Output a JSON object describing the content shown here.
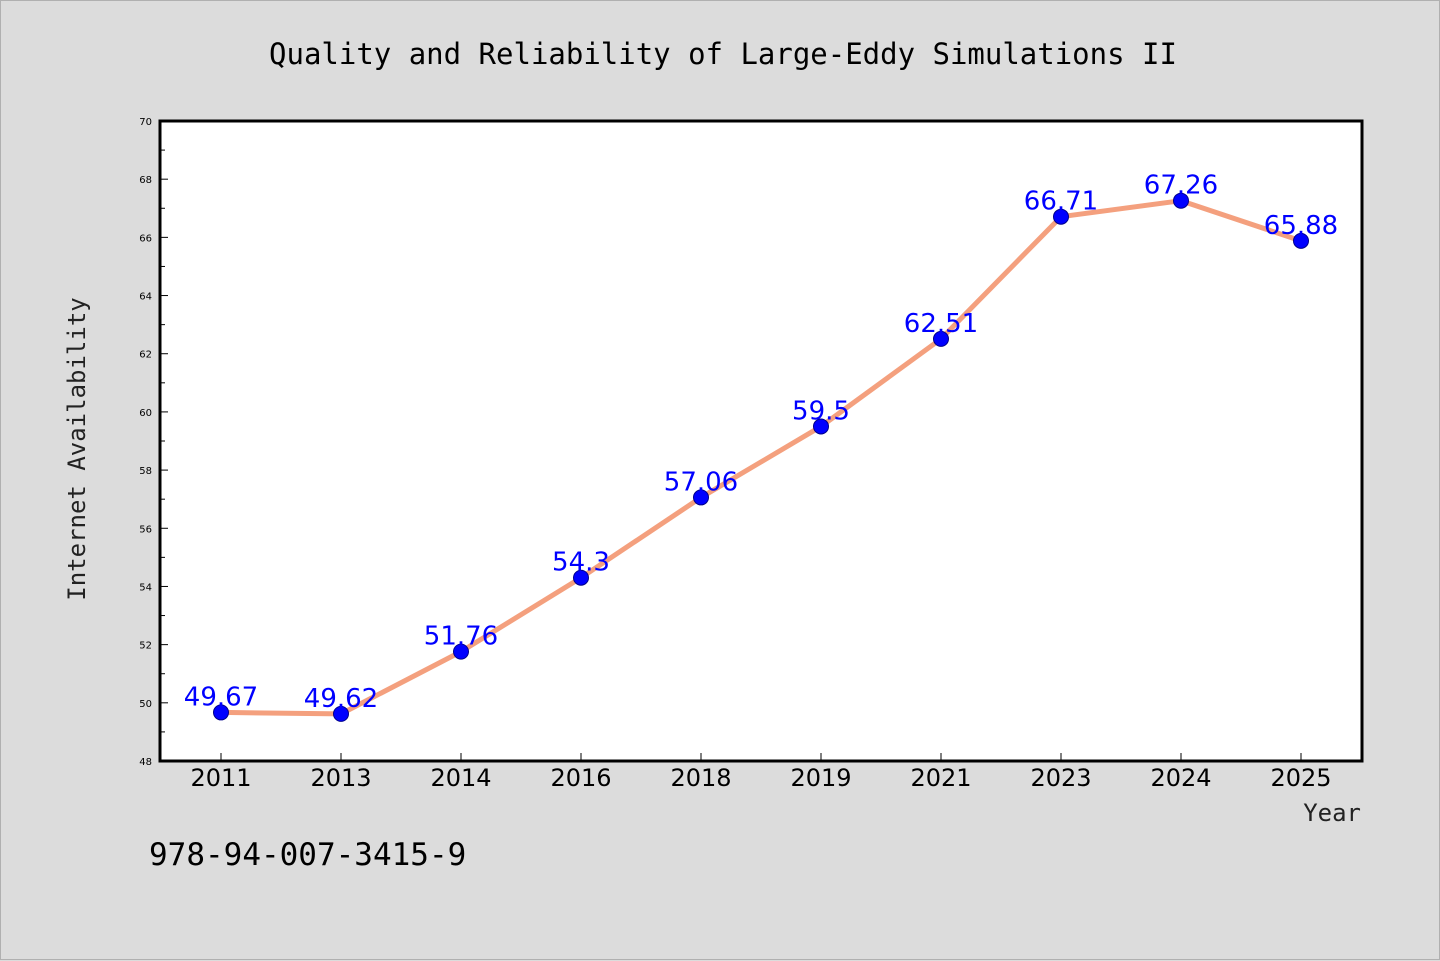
{
  "chart_data": {
    "type": "line",
    "title": "Quality and Reliability of Large-Eddy Simulations II",
    "xlabel": "Year",
    "ylabel": "Internet Availability",
    "categories": [
      "2011",
      "2013",
      "2014",
      "2016",
      "2018",
      "2019",
      "2021",
      "2023",
      "2024",
      "2025"
    ],
    "series": [
      {
        "values": [
          49.67,
          49.62,
          51.76,
          54.3,
          57.06,
          59.5,
          62.51,
          66.71,
          67.26,
          65.88
        ],
        "labels": [
          "49.67",
          "49.62",
          "51.76",
          "54.3",
          "57.06",
          "59.5",
          "62.51",
          "66.71",
          "67.26",
          "65.88"
        ]
      }
    ],
    "ylim": [
      48,
      70
    ],
    "yticks": [
      "48",
      "50",
      "52",
      "54",
      "56",
      "58",
      "60",
      "62",
      "64",
      "66",
      "68",
      "70"
    ],
    "grid": false,
    "legend": "none",
    "colors": {
      "line": "#f4a07e",
      "marker": "#0000ff",
      "label": "#0000ff",
      "plot_background": "#ffffff",
      "page_background": "#dcdcdc"
    }
  },
  "footnote": "978-94-007-3415-9"
}
